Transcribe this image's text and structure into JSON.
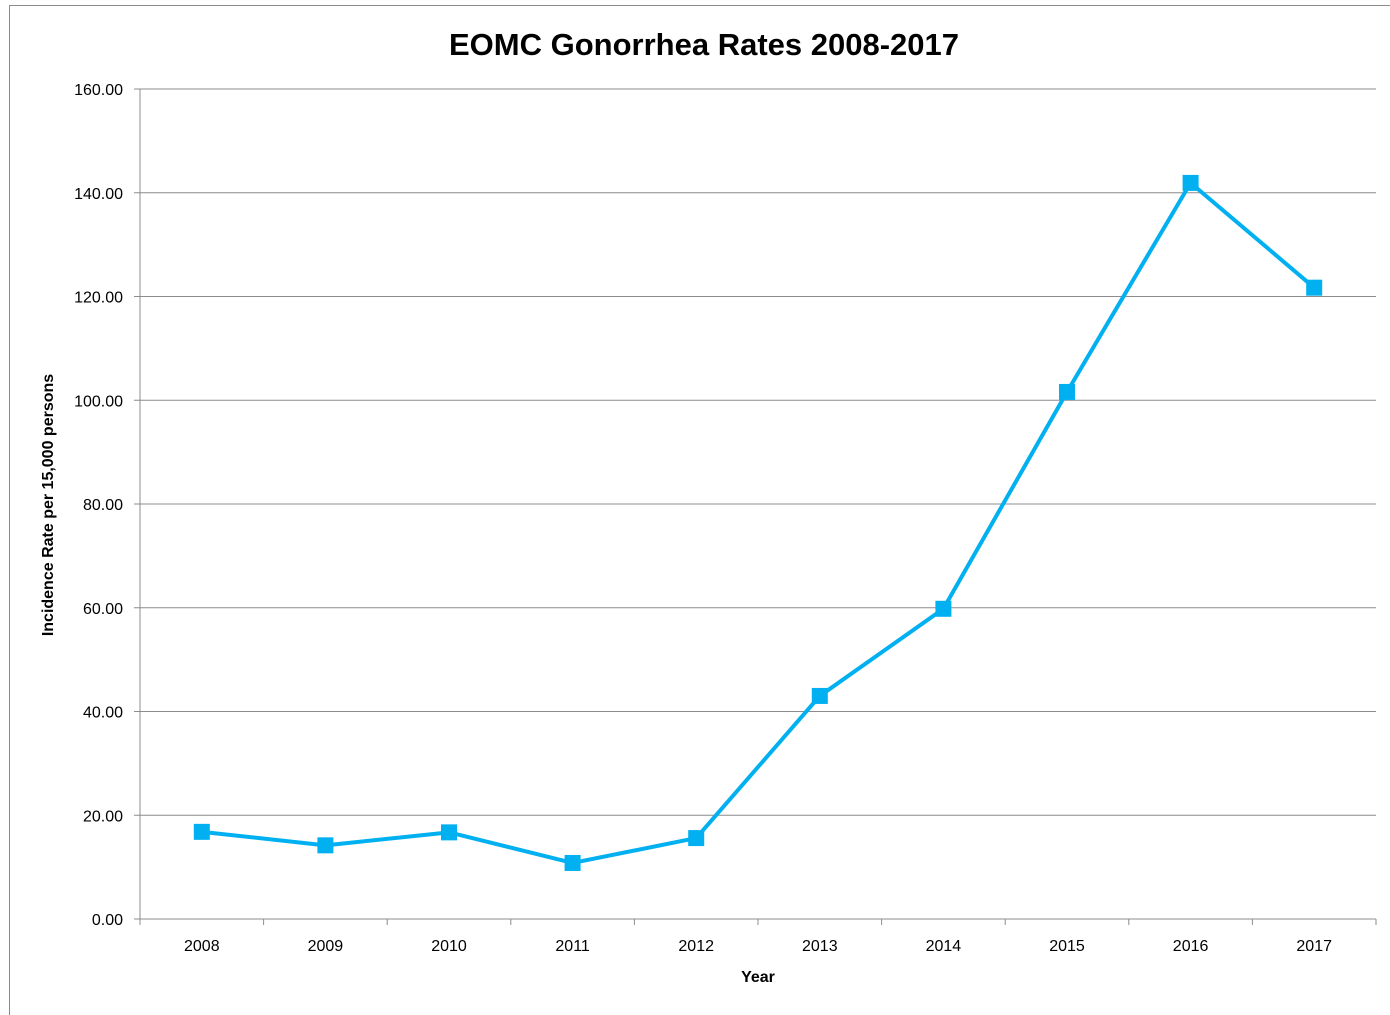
{
  "chart_data": {
    "type": "line",
    "title": "EOMC Gonorrhea Rates 2008-2017",
    "xlabel": "Year",
    "ylabel": "Incidence Rate per 15,000 persons",
    "categories": [
      "2008",
      "2009",
      "2010",
      "2011",
      "2012",
      "2013",
      "2014",
      "2015",
      "2016",
      "2017"
    ],
    "series": [
      {
        "values": [
          16.8,
          14.2,
          16.7,
          10.8,
          15.6,
          43.0,
          59.8,
          101.6,
          141.9,
          121.7
        ]
      }
    ],
    "ylim": [
      0,
      160
    ],
    "yticks": [
      "0.00",
      "20.00",
      "40.00",
      "60.00",
      "80.00",
      "100.00",
      "120.00",
      "140.00",
      "160.00"
    ],
    "grid": true,
    "legend": "none",
    "colors": {
      "series": "#00b0f0",
      "grid": "#8c8c8c",
      "axis": "#8c8c8c"
    }
  }
}
